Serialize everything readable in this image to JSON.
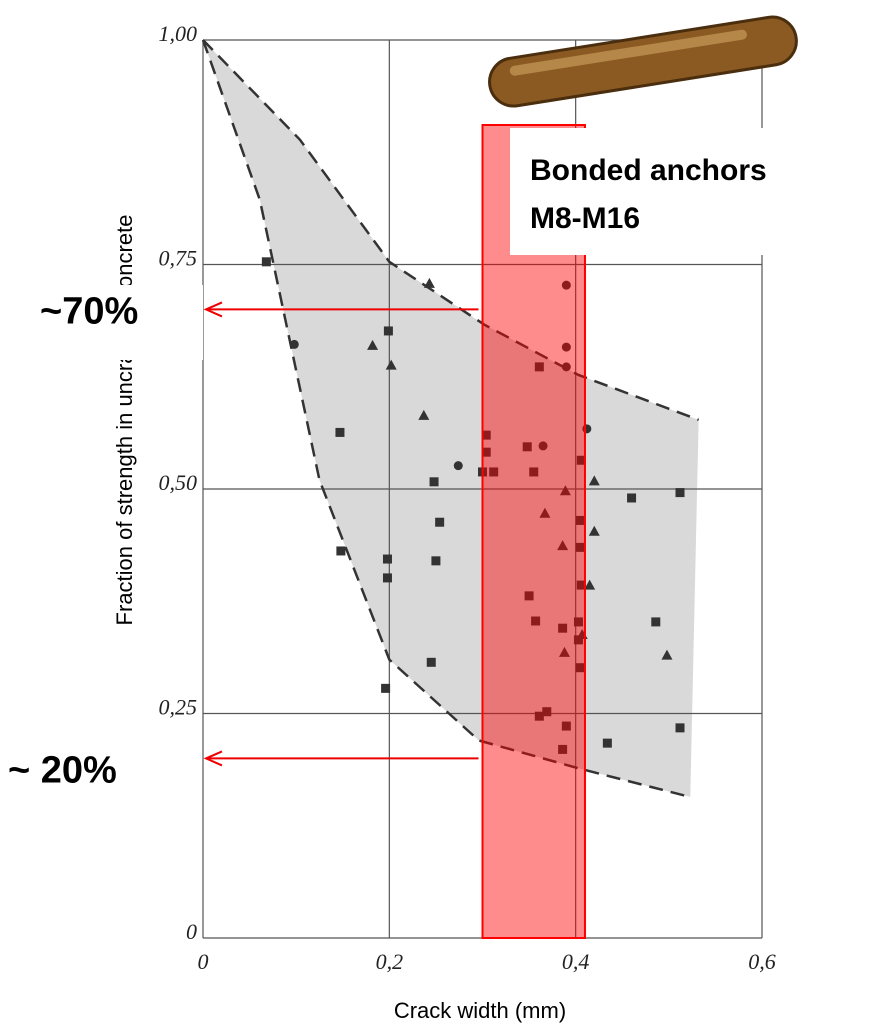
{
  "chart_data": {
    "type": "scatter",
    "x_label": "Crack width (mm)",
    "y_label": "Fraction of strength in uncracked concrete",
    "xlim": [
      0,
      0.6
    ],
    "ylim": [
      0,
      1
    ],
    "xticks": [
      0,
      {
        "value": 0.2,
        "label": "0,2"
      },
      {
        "value": 0.4,
        "label": "0,4"
      },
      {
        "value": 0.6,
        "label": "0,6"
      }
    ],
    "yticks": [
      0,
      {
        "value": 0.25,
        "label": "0,25"
      },
      {
        "value": 0.5,
        "label": "0,50"
      },
      {
        "value": 0.75,
        "label": "0,75"
      },
      {
        "value": 1,
        "label": "1,00"
      }
    ],
    "grid": true,
    "series": [
      {
        "marker": "square",
        "color": "#333333",
        "x": [
          0.068,
          0.199,
          0.147,
          0.148,
          0.198,
          0.198,
          0.196,
          0.248,
          0.254,
          0.25,
          0.245,
          0.304,
          0.304,
          0.3,
          0.312,
          0.348,
          0.355,
          0.361,
          0.35,
          0.357,
          0.361,
          0.369,
          0.39,
          0.386,
          0.386,
          0.403,
          0.403,
          0.406,
          0.405,
          0.405,
          0.406,
          0.405,
          0.434,
          0.46,
          0.486,
          0.512,
          0.512
        ],
        "values": [
          0.753,
          0.676,
          0.563,
          0.431,
          0.422,
          0.401,
          0.278,
          0.508,
          0.463,
          0.42,
          0.307,
          0.56,
          0.541,
          0.519,
          0.519,
          0.547,
          0.519,
          0.636,
          0.381,
          0.353,
          0.247,
          0.252,
          0.236,
          0.21,
          0.345,
          0.352,
          0.332,
          0.532,
          0.465,
          0.435,
          0.393,
          0.301,
          0.217,
          0.49,
          0.352,
          0.496,
          0.234
        ]
      },
      {
        "marker": "circle",
        "color": "#333333",
        "x": [
          0.098,
          0.274,
          0.365,
          0.39,
          0.39,
          0.412,
          0.39
        ],
        "values": [
          0.661,
          0.526,
          0.548,
          0.727,
          0.658,
          0.567,
          0.636
        ]
      },
      {
        "marker": "triangle",
        "color": "#333333",
        "x": [
          0.182,
          0.202,
          0.243,
          0.237,
          0.367,
          0.386,
          0.389,
          0.388,
          0.42,
          0.42,
          0.415,
          0.407,
          0.498
        ],
        "values": [
          0.66,
          0.638,
          0.729,
          0.582,
          0.473,
          0.437,
          0.498,
          0.318,
          0.509,
          0.453,
          0.393,
          0.338,
          0.315
        ]
      }
    ],
    "envelope": {
      "color": "#d9d9d9",
      "upper": {
        "x": [
          0,
          0.104,
          0.2,
          0.302,
          0.403,
          0.532
        ],
        "values": [
          1,
          0.889,
          0.753,
          0.683,
          0.627,
          0.577
        ]
      },
      "lower": {
        "x": [
          0,
          0.061,
          0.125,
          0.2,
          0.296,
          0.403,
          0.523
        ],
        "values": [
          1,
          0.822,
          0.51,
          0.31,
          0.22,
          0.189,
          0.157
        ]
      }
    },
    "band": {
      "x": [
        0.3,
        0.41
      ],
      "color": "#ff0000"
    },
    "annotations": [
      {
        "text": "~70%",
        "y": 0.7
      },
      {
        "text": "~ 20%",
        "y": 0.2
      }
    ],
    "callout": [
      "Bonded anchors",
      "M8-M16"
    ]
  }
}
